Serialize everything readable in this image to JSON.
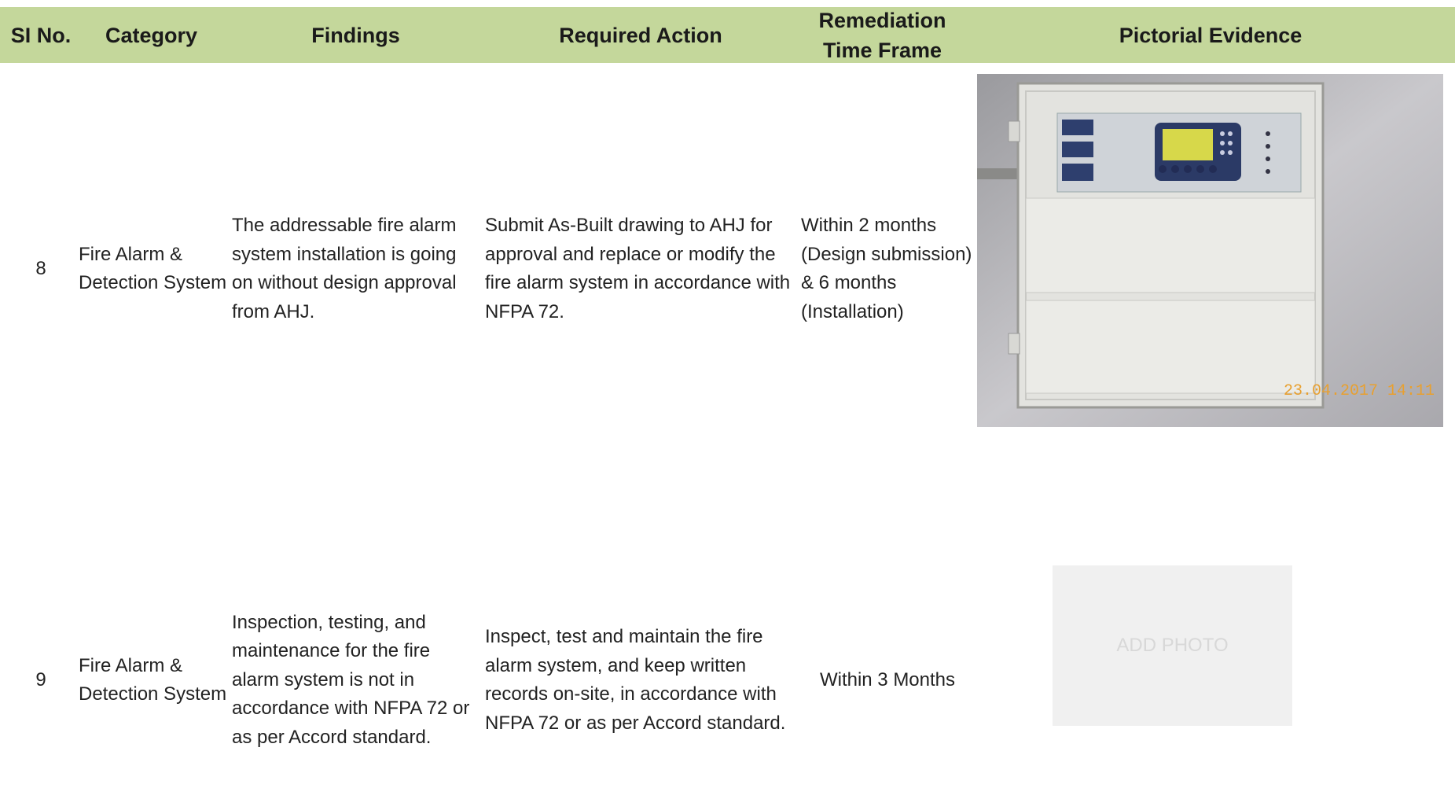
{
  "header": {
    "columns": [
      "SI No.",
      "Category",
      "Findings",
      "Required Action",
      "Remediation Time Frame",
      "Pictorial Evidence"
    ]
  },
  "rows": [
    {
      "sl_no": "8",
      "category": "Fire Alarm & Detection System",
      "findings": "The addressable fire alarm system installation is going on without design approval from AHJ.",
      "required_action": "Submit As-Built drawing to AHJ for approval and replace or modify the fire alarm system in accordance with NFPA 72.",
      "time_frame": "Within 2 months (Design submission) & 6 months (Installation)",
      "evidence_timestamp": "23.04.2017 14:11"
    },
    {
      "sl_no": "9",
      "category": "Fire Alarm & Detection System",
      "findings": "Inspection, testing, and maintenance for the fire alarm system is not in accordance with NFPA 72 or as per Accord standard.",
      "required_action": "Inspect, test and maintain the fire alarm system, and keep written records on-site, in accordance with NFPA 72 or as per Accord standard.",
      "time_frame": "Within 3 Months",
      "evidence_placeholder": "ADD PHOTO"
    }
  ]
}
